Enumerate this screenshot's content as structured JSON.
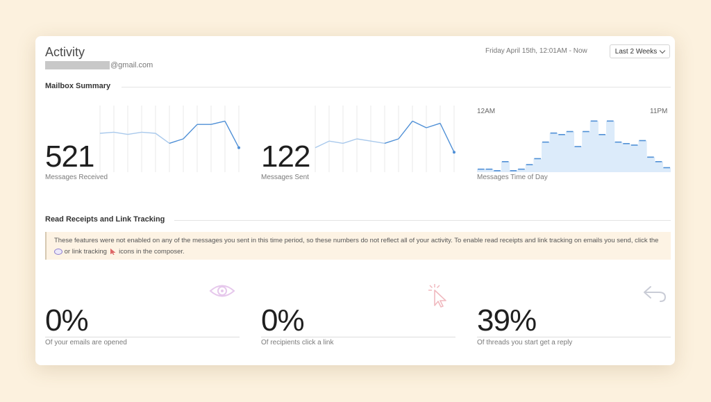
{
  "header": {
    "title": "Activity",
    "email_suffix": "@gmail.com",
    "date_range": "Friday April 15th, 12:01AM - Now",
    "period_select": "Last 2 Weeks"
  },
  "mailbox_summary": {
    "section_title": "Mailbox Summary",
    "received": {
      "value": "521",
      "label": "Messages Received"
    },
    "sent": {
      "value": "122",
      "label": "Messages Sent"
    },
    "time_of_day": {
      "label": "Messages Time of Day",
      "start_label": "12AM",
      "end_label": "11PM"
    }
  },
  "tracking": {
    "section_title": "Read Receipts and Link Tracking",
    "notice_part1": "These features were not enabled on any of the messages you sent in this time period, so these numbers do not reflect all of your activity. To enable read receipts and link tracking on emails you send, click the",
    "notice_part2": "or link tracking",
    "notice_part3": "icons in the composer.",
    "opened": {
      "value": "0%",
      "label": "Of your emails are opened"
    },
    "clicked": {
      "value": "0%",
      "label": "Of recipients click a link"
    },
    "replied": {
      "value": "39%",
      "label": "Of threads you start get a reply"
    }
  },
  "chart_data": [
    {
      "type": "line",
      "name": "Messages Received",
      "values": [
        35,
        36,
        34,
        36,
        35,
        26,
        30,
        43,
        43,
        46,
        22
      ]
    },
    {
      "type": "line",
      "name": "Messages Sent",
      "values": [
        22,
        28,
        26,
        30,
        28,
        26,
        30,
        46,
        40,
        44,
        18
      ]
    },
    {
      "type": "bar",
      "name": "Messages Time of Day",
      "categories": [
        "0",
        "1",
        "2",
        "3",
        "4",
        "5",
        "6",
        "7",
        "8",
        "9",
        "10",
        "11",
        "12",
        "13",
        "14",
        "15",
        "16",
        "17",
        "18",
        "19",
        "20",
        "21",
        "22",
        "23"
      ],
      "values": [
        2,
        2,
        1,
        7,
        1,
        2,
        5,
        9,
        20,
        26,
        25,
        27,
        17,
        27,
        34,
        25,
        34,
        20,
        19,
        18,
        21,
        10,
        7,
        3
      ]
    }
  ],
  "colors": {
    "line_dark": "#4e8fd6",
    "line_light": "#a9c9ec",
    "area_fill": "#dcebfa",
    "notice_bg": "#fdf3e4"
  }
}
